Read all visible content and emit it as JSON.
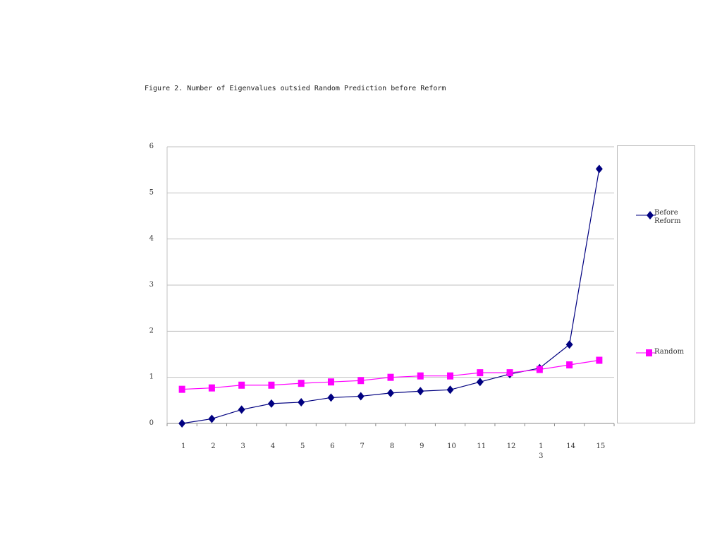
{
  "chart_data": {
    "type": "line",
    "title": "Figure 2. Number of Eigenvalues outsied Random Prediction before Reform",
    "xlabel": "",
    "ylabel": "",
    "categories": [
      "1",
      "2",
      "3",
      "4",
      "5",
      "6",
      "7",
      "8",
      "9",
      "10",
      "11",
      "12",
      "1\n3",
      "14",
      "15"
    ],
    "ylim": [
      0,
      6
    ],
    "yticks": [
      "0",
      "1",
      "2",
      "3",
      "4",
      "5",
      "6"
    ],
    "grid": true,
    "legend_position": "right",
    "series": [
      {
        "name": "Before Reform",
        "color": "#000080",
        "marker": "diamond",
        "values": [
          0.0,
          0.1,
          0.3,
          0.43,
          0.46,
          0.56,
          0.59,
          0.66,
          0.7,
          0.73,
          0.9,
          1.07,
          1.2,
          1.71,
          5.52
        ]
      },
      {
        "name": "Random",
        "color": "#ff00ff",
        "marker": "square",
        "values": [
          0.74,
          0.77,
          0.83,
          0.83,
          0.87,
          0.9,
          0.93,
          1.0,
          1.03,
          1.03,
          1.1,
          1.1,
          1.17,
          1.27,
          1.37
        ]
      }
    ]
  }
}
